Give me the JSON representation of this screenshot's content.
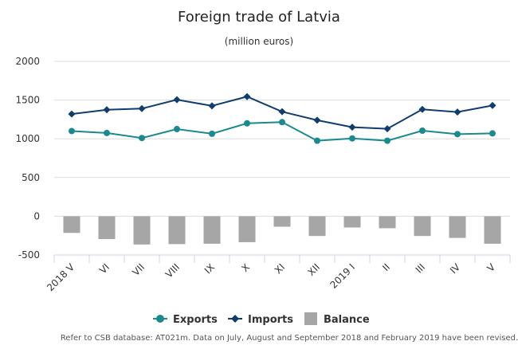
{
  "chart_data": {
    "type": "line+bar",
    "title": "Foreign trade of Latvia",
    "subtitle": "(million euros)",
    "categories": [
      "2018 V",
      "VI",
      "VII",
      "VIII",
      "IX",
      "X",
      "XI",
      "XII",
      "2019 I",
      "II",
      "III",
      "IV",
      "V"
    ],
    "ylim": [
      -500,
      2000
    ],
    "yticks": [
      -500,
      0,
      500,
      1000,
      1500,
      2000
    ],
    "grid": true,
    "legend_position": "bottom",
    "series": [
      {
        "name": "Exports",
        "type": "line",
        "color": "#1a8a8e",
        "values": [
          1100,
          1075,
          1010,
          1125,
          1065,
          1200,
          1215,
          975,
          1005,
          975,
          1105,
          1060,
          1070
        ]
      },
      {
        "name": "Imports",
        "type": "line",
        "color": "#0f3d6e",
        "values": [
          1320,
          1375,
          1390,
          1505,
          1425,
          1545,
          1350,
          1240,
          1150,
          1130,
          1380,
          1345,
          1430
        ]
      },
      {
        "name": "Balance",
        "type": "bar",
        "color": "#a6a6a6",
        "values": [
          -215,
          -295,
          -365,
          -360,
          -355,
          -335,
          -135,
          -255,
          -145,
          -155,
          -255,
          -280,
          -355
        ]
      }
    ],
    "footnote": "Refer to CSB database: AT021m. Data on July, August and September 2018 and February 2019 have been revised."
  }
}
